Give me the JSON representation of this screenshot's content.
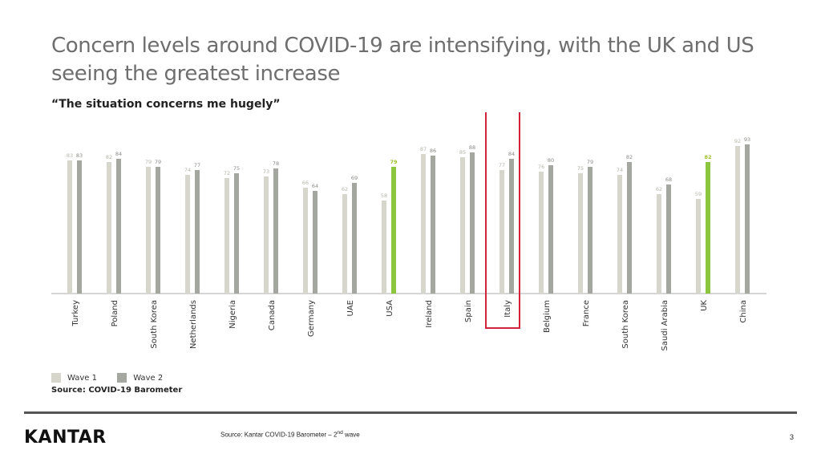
{
  "page": {
    "title": "Concern levels around COVID-19 are intensifying, with the UK and US seeing the greatest increase",
    "subtitle": "“The situation concerns me hugely”",
    "chart_source": "Source: COVID-19 Barometer",
    "footer_source": "Source: Kantar COVID-19 Barometer – 2",
    "footer_source_sup": "nd",
    "footer_source_tail": " wave",
    "logo": "KANTAR",
    "page_number": "3"
  },
  "colors": {
    "wave1": "#d6d6cc",
    "wave2": "#a4a6a0",
    "highlight": "#8cc63f",
    "highlight_label": "#9bc22a",
    "box": "#d0243c",
    "label_grey": "#9a9a9a"
  },
  "chart_data": {
    "type": "bar",
    "title": "",
    "ylim": [
      0,
      100
    ],
    "grid": false,
    "legend_position": "bottom-left",
    "categories": [
      "Turkey",
      "Poland",
      "South Korea",
      "Netherlands",
      "Nigeria",
      "Canada",
      "Germany",
      "UAE",
      "USA",
      "Ireland",
      "Spain",
      "Italy",
      "Belgium",
      "France",
      "South Korea",
      "Saudi Arabia",
      "UK",
      "China"
    ],
    "series": [
      {
        "name": "Wave 1",
        "values": [
          83,
          82,
          79,
          74,
          72,
          73,
          66,
          62,
          58,
          87,
          85,
          77,
          76,
          75,
          74,
          62,
          59,
          92
        ]
      },
      {
        "name": "Wave 2",
        "values": [
          83,
          84,
          79,
          77,
          75,
          78,
          64,
          69,
          79,
          86,
          88,
          84,
          80,
          79,
          82,
          68,
          82,
          93
        ]
      }
    ],
    "highlighted_categories": [
      "USA",
      "UK"
    ],
    "boxed_category": "Italy"
  }
}
